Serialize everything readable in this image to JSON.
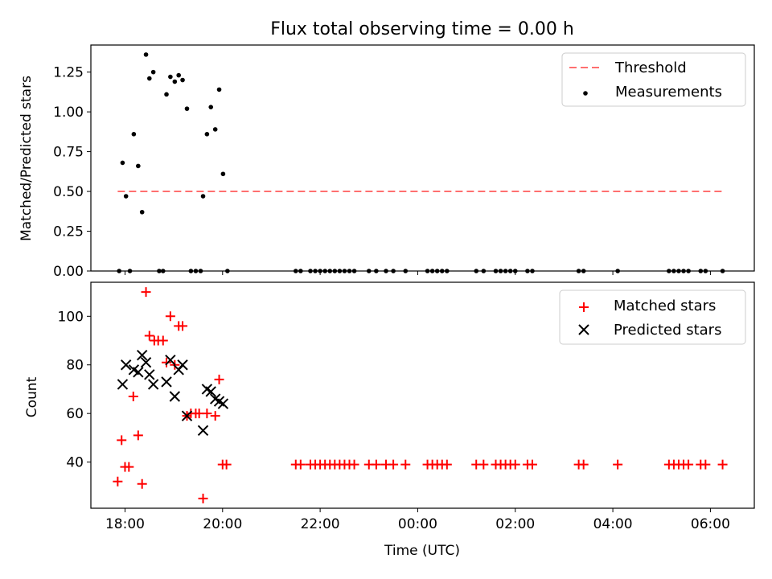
{
  "title": "Flux total observing time = 0.00 h",
  "colors": {
    "threshold": "#ff7070",
    "measurements": "#000000",
    "matched": "#ff0000",
    "predicted": "#000000"
  },
  "chart_data": [
    {
      "type": "scatter",
      "ylabel": "Matched/Predicted stars",
      "x_unit": "hours since 00:00 UTC of the first night (values above 24 fall on the next day)",
      "xlim": [
        17.3,
        30.9
      ],
      "ylim": [
        0.0,
        1.42
      ],
      "yticks": [
        0.0,
        0.25,
        0.5,
        0.75,
        1.0,
        1.25
      ],
      "ytick_labels": [
        "0.00",
        "0.25",
        "0.50",
        "0.75",
        "1.00",
        "1.25"
      ],
      "grid": false,
      "legend_position": "upper right",
      "legend": [
        "Threshold",
        "Measurements"
      ],
      "threshold": {
        "name": "Threshold",
        "style": "dashed",
        "x": [
          17.85,
          30.25
        ],
        "y": 0.5
      },
      "series": [
        {
          "name": "Measurements",
          "marker": "dot",
          "points": [
            [
              17.95,
              0.68
            ],
            [
              18.02,
              0.47
            ],
            [
              18.18,
              0.86
            ],
            [
              18.27,
              0.66
            ],
            [
              18.35,
              0.37
            ],
            [
              18.43,
              1.36
            ],
            [
              18.5,
              1.21
            ],
            [
              18.58,
              1.25
            ],
            [
              18.85,
              1.11
            ],
            [
              18.93,
              1.22
            ],
            [
              19.02,
              1.19
            ],
            [
              19.1,
              1.23
            ],
            [
              19.18,
              1.2
            ],
            [
              19.27,
              1.02
            ],
            [
              19.6,
              0.47
            ],
            [
              19.68,
              0.86
            ],
            [
              19.76,
              1.03
            ],
            [
              19.85,
              0.89
            ],
            [
              19.93,
              1.14
            ],
            [
              20.01,
              0.61
            ],
            [
              17.88,
              0.0
            ],
            [
              18.1,
              0.0
            ],
            [
              18.7,
              0.0
            ],
            [
              18.78,
              0.0
            ],
            [
              19.35,
              0.0
            ],
            [
              19.45,
              0.0
            ],
            [
              19.55,
              0.0
            ],
            [
              20.1,
              0.0
            ],
            [
              21.5,
              0.0
            ],
            [
              21.6,
              0.0
            ],
            [
              21.8,
              0.0
            ],
            [
              21.9,
              0.0
            ],
            [
              22.0,
              0.0
            ],
            [
              22.1,
              0.0
            ],
            [
              22.2,
              0.0
            ],
            [
              22.3,
              0.0
            ],
            [
              22.4,
              0.0
            ],
            [
              22.5,
              0.0
            ],
            [
              22.6,
              0.0
            ],
            [
              22.7,
              0.0
            ],
            [
              23.0,
              0.0
            ],
            [
              23.15,
              0.0
            ],
            [
              23.35,
              0.0
            ],
            [
              23.5,
              0.0
            ],
            [
              23.75,
              0.0
            ],
            [
              24.2,
              0.0
            ],
            [
              24.3,
              0.0
            ],
            [
              24.4,
              0.0
            ],
            [
              24.5,
              0.0
            ],
            [
              24.6,
              0.0
            ],
            [
              25.2,
              0.0
            ],
            [
              25.35,
              0.0
            ],
            [
              25.6,
              0.0
            ],
            [
              25.7,
              0.0
            ],
            [
              25.8,
              0.0
            ],
            [
              25.9,
              0.0
            ],
            [
              26.0,
              0.0
            ],
            [
              26.25,
              0.0
            ],
            [
              26.35,
              0.0
            ],
            [
              27.3,
              0.0
            ],
            [
              27.4,
              0.0
            ],
            [
              28.1,
              0.0
            ],
            [
              29.15,
              0.0
            ],
            [
              29.25,
              0.0
            ],
            [
              29.35,
              0.0
            ],
            [
              29.45,
              0.0
            ],
            [
              29.55,
              0.0
            ],
            [
              29.8,
              0.0
            ],
            [
              29.9,
              0.0
            ],
            [
              30.25,
              0.0
            ]
          ]
        }
      ]
    },
    {
      "type": "scatter",
      "ylabel": "Count",
      "xlabel": "Time (UTC)",
      "x_unit": "hours since 00:00 UTC of the first night (values above 24 fall on the next day)",
      "xlim": [
        17.3,
        30.9
      ],
      "ylim": [
        21,
        114
      ],
      "yticks": [
        40,
        60,
        80,
        100
      ],
      "ytick_labels": [
        "40",
        "60",
        "80",
        "100"
      ],
      "xticks": [
        18,
        20,
        22,
        24,
        26,
        28,
        30
      ],
      "xtick_labels": [
        "18:00",
        "20:00",
        "22:00",
        "00:00",
        "02:00",
        "04:00",
        "06:00"
      ],
      "grid": false,
      "legend_position": "upper right",
      "legend": [
        "Matched stars",
        "Predicted stars"
      ],
      "series": [
        {
          "name": "Matched stars",
          "marker": "plus",
          "points": [
            [
              17.85,
              32
            ],
            [
              17.93,
              49
            ],
            [
              18.0,
              38
            ],
            [
              18.08,
              38
            ],
            [
              18.17,
              67
            ],
            [
              18.27,
              51
            ],
            [
              18.35,
              31
            ],
            [
              18.43,
              110
            ],
            [
              18.5,
              92
            ],
            [
              18.6,
              90
            ],
            [
              18.68,
              90
            ],
            [
              18.78,
              90
            ],
            [
              18.85,
              81
            ],
            [
              18.93,
              100
            ],
            [
              19.02,
              80
            ],
            [
              19.1,
              96
            ],
            [
              19.18,
              96
            ],
            [
              19.27,
              59
            ],
            [
              19.35,
              60
            ],
            [
              19.45,
              60
            ],
            [
              19.52,
              60
            ],
            [
              19.6,
              25
            ],
            [
              19.68,
              60
            ],
            [
              19.85,
              59
            ],
            [
              19.93,
              74
            ],
            [
              20.0,
              39
            ],
            [
              20.08,
              39
            ],
            [
              21.5,
              39
            ],
            [
              21.6,
              39
            ],
            [
              21.8,
              39
            ],
            [
              21.9,
              39
            ],
            [
              22.0,
              39
            ],
            [
              22.1,
              39
            ],
            [
              22.2,
              39
            ],
            [
              22.3,
              39
            ],
            [
              22.4,
              39
            ],
            [
              22.5,
              39
            ],
            [
              22.6,
              39
            ],
            [
              22.7,
              39
            ],
            [
              23.0,
              39
            ],
            [
              23.15,
              39
            ],
            [
              23.35,
              39
            ],
            [
              23.5,
              39
            ],
            [
              23.75,
              39
            ],
            [
              24.2,
              39
            ],
            [
              24.3,
              39
            ],
            [
              24.4,
              39
            ],
            [
              24.5,
              39
            ],
            [
              24.6,
              39
            ],
            [
              25.2,
              39
            ],
            [
              25.35,
              39
            ],
            [
              25.6,
              39
            ],
            [
              25.7,
              39
            ],
            [
              25.8,
              39
            ],
            [
              25.9,
              39
            ],
            [
              26.0,
              39
            ],
            [
              26.25,
              39
            ],
            [
              26.35,
              39
            ],
            [
              27.3,
              39
            ],
            [
              27.4,
              39
            ],
            [
              28.1,
              39
            ],
            [
              29.15,
              39
            ],
            [
              29.25,
              39
            ],
            [
              29.35,
              39
            ],
            [
              29.45,
              39
            ],
            [
              29.55,
              39
            ],
            [
              29.8,
              39
            ],
            [
              29.9,
              39
            ],
            [
              30.25,
              39
            ]
          ]
        },
        {
          "name": "Predicted stars",
          "marker": "x",
          "points": [
            [
              17.95,
              72
            ],
            [
              18.02,
              80
            ],
            [
              18.18,
              78
            ],
            [
              18.27,
              77
            ],
            [
              18.35,
              84
            ],
            [
              18.43,
              81
            ],
            [
              18.5,
              76
            ],
            [
              18.58,
              72
            ],
            [
              18.85,
              73
            ],
            [
              18.93,
              82
            ],
            [
              19.02,
              67
            ],
            [
              19.1,
              78
            ],
            [
              19.18,
              80
            ],
            [
              19.27,
              59
            ],
            [
              19.6,
              53
            ],
            [
              19.68,
              70
            ],
            [
              19.76,
              69
            ],
            [
              19.85,
              66
            ],
            [
              19.93,
              65
            ],
            [
              20.01,
              64
            ]
          ]
        }
      ]
    }
  ]
}
